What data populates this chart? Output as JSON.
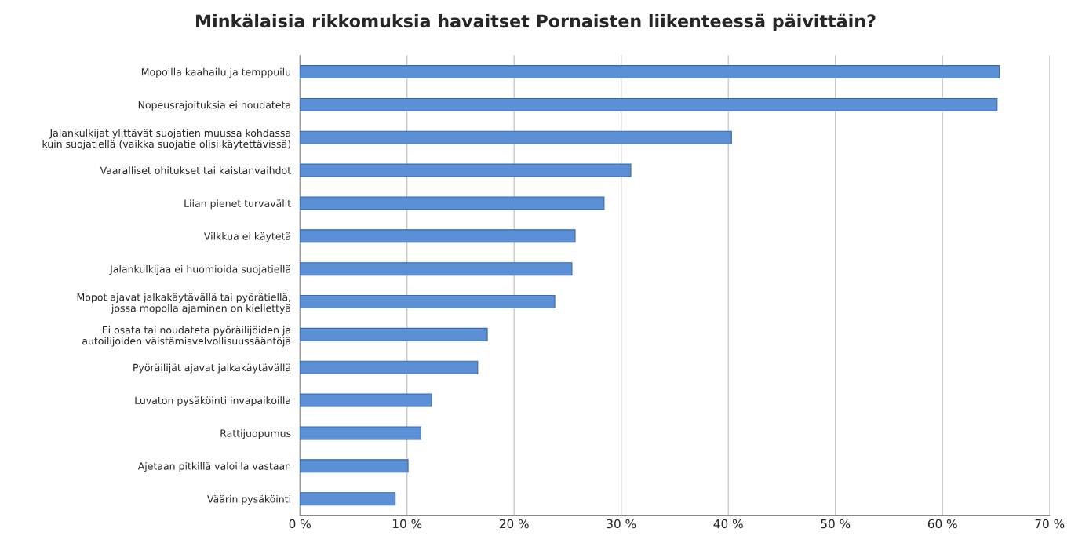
{
  "chart_data": {
    "type": "bar",
    "orientation": "horizontal",
    "title": "Minkälaisia rikkomuksia havaitset Pornaisten liikenteessä päivittäin?",
    "categories": [
      "Mopoilla kaahailu ja temppuilu",
      "Nopeusrajoituksia ei noudateta",
      "Jalankulkijat ylittävät suojatien muussa kohdassa\nkuin suojatiellä (vaikka suojatie olisi käytettävissä)",
      "Vaaralliset ohitukset tai kaistanvaihdot",
      "Liian pienet turvavälit",
      "Vilkkua ei käytetä",
      "Jalankulkijaa ei huomioida suojatiellä",
      "Mopot ajavat jalkakäytävällä tai pyörätiellä,\njossa mopolla ajaminen on kiellettyä",
      "Ei osata tai noudateta pyöräilijöiden ja\nautoilijoiden väistämisvelvollisuussääntöjä",
      "Pyöräilijät ajavat jalkakäytävällä",
      "Luvaton pysäköinti invapaikoilla",
      "Rattijuopumus",
      "Ajetaan pitkillä valoilla vastaan",
      "Väärin pysäköinti"
    ],
    "values": [
      65.3,
      65.1,
      40.3,
      30.9,
      28.4,
      25.7,
      25.4,
      23.8,
      17.5,
      16.6,
      12.3,
      11.3,
      10.1,
      8.9
    ],
    "color": "#5b8fd6",
    "xlim": [
      0,
      70
    ],
    "xticks": [
      {
        "value": 0,
        "label": "0 %"
      },
      {
        "value": 10,
        "label": "10 %"
      },
      {
        "value": 20,
        "label": "20 %"
      },
      {
        "value": 30,
        "label": "30 %"
      },
      {
        "value": 40,
        "label": "40 %"
      },
      {
        "value": 50,
        "label": "50 %"
      },
      {
        "value": 60,
        "label": "60 %"
      },
      {
        "value": 70,
        "label": "70 %"
      }
    ],
    "grid": "x"
  }
}
